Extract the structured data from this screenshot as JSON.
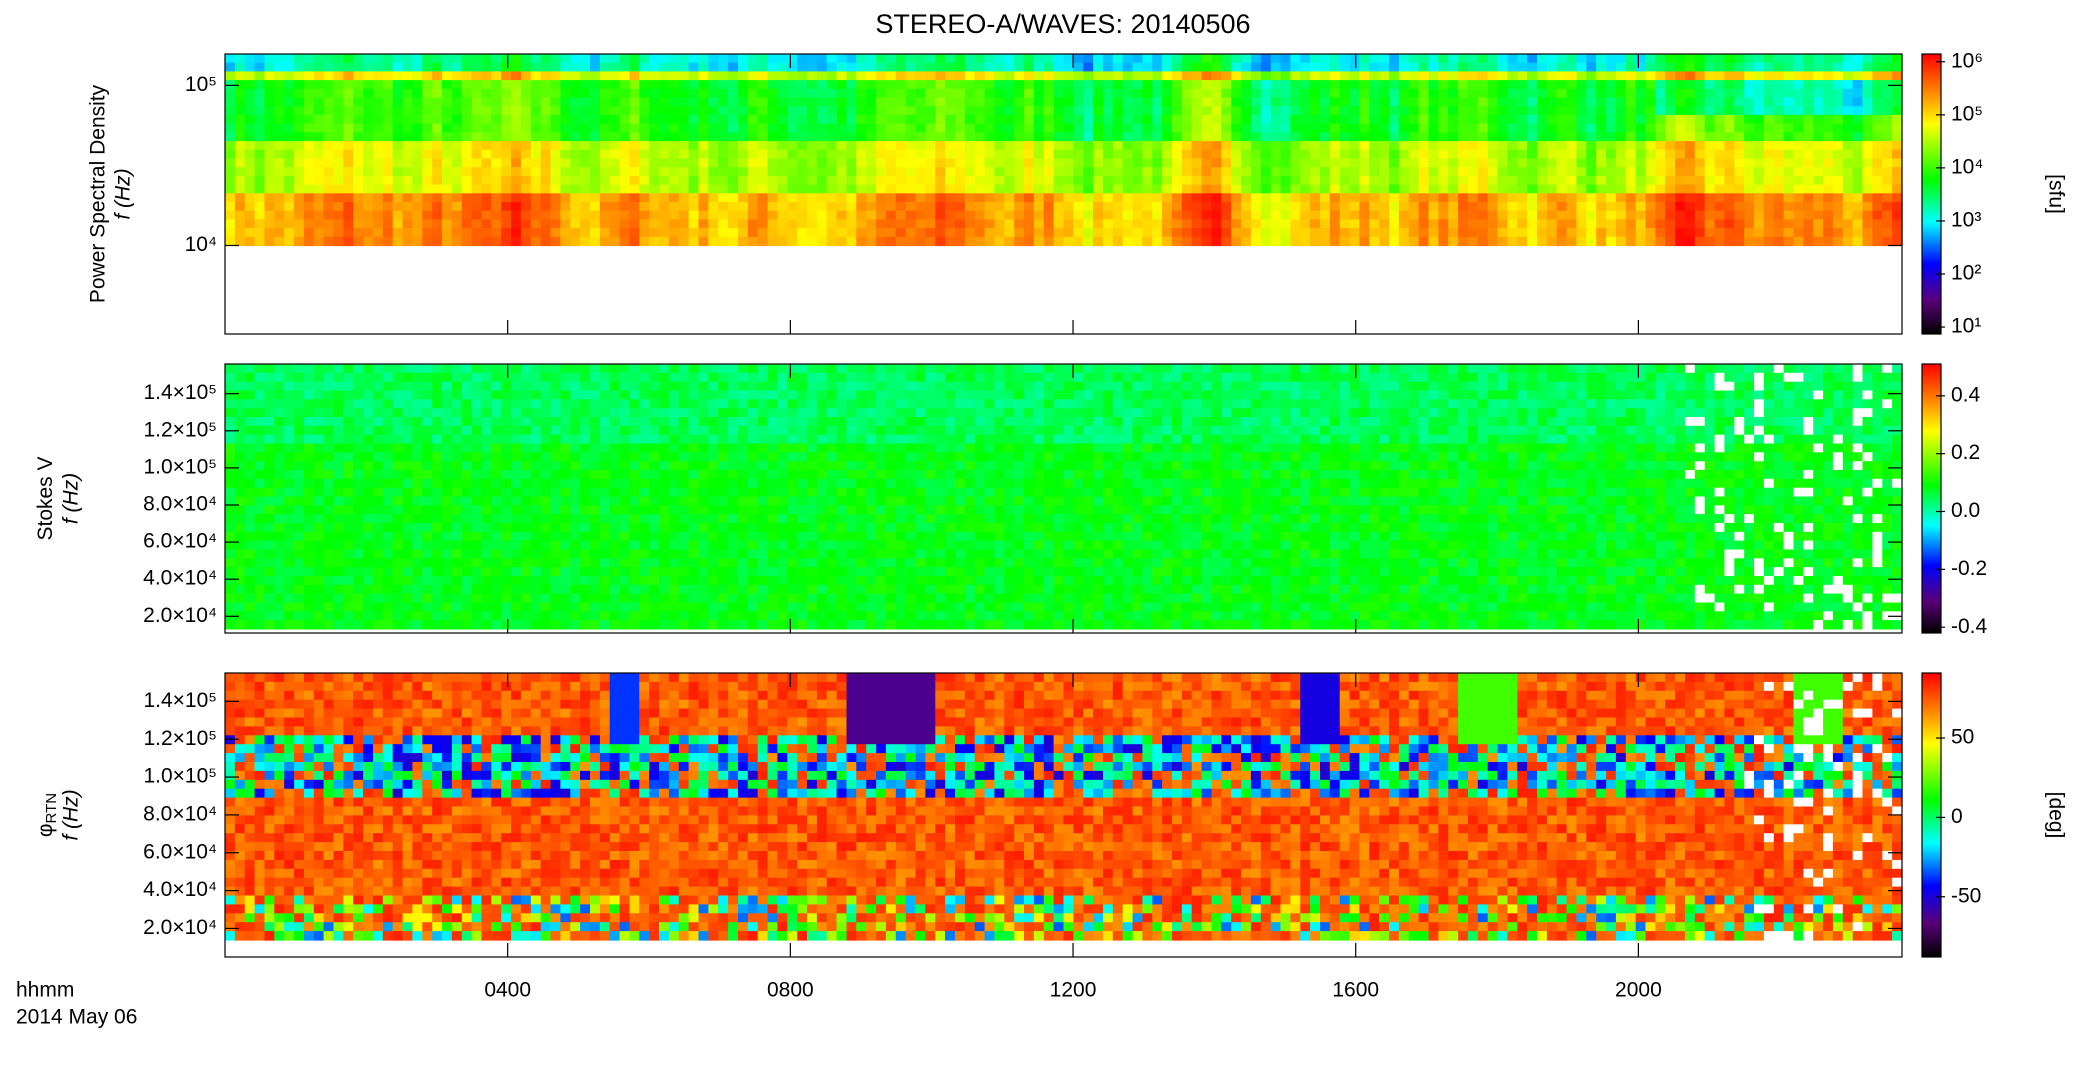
{
  "title": "STEREO-A/WAVES: 20140506",
  "x_label": "hhmm",
  "date_label": "2014 May 06",
  "xlim": [
    0,
    23.73
  ],
  "xticks": [
    {
      "value": 4,
      "label": "0400"
    },
    {
      "value": 8,
      "label": "0800"
    },
    {
      "value": 12,
      "label": "1200"
    },
    {
      "value": 16,
      "label": "1600"
    },
    {
      "value": 20,
      "label": "2000"
    }
  ],
  "chart_data": [
    {
      "type": "spectrogram",
      "ylabel": "Power Spectral Density",
      "ylabel2": "f (Hz)",
      "yscale": "log",
      "ylim": [
        2800,
        157000
      ],
      "yticks": [
        {
          "value": 10000,
          "label": "10⁴"
        },
        {
          "value": 100000,
          "label": "10⁵"
        }
      ],
      "colorbar": {
        "label": "[sfu]",
        "scale": "log",
        "lim": [
          7.4,
          1400000
        ],
        "ticks": [
          {
            "value": 10,
            "label": "10¹"
          },
          {
            "value": 100,
            "label": "10²"
          },
          {
            "value": 1000,
            "label": "10³"
          },
          {
            "value": 10000,
            "label": "10⁴"
          },
          {
            "value": 100000,
            "label": "10⁵"
          },
          {
            "value": 1000000,
            "label": "10⁶"
          }
        ]
      }
    },
    {
      "type": "spectrogram",
      "ylabel": "Stokes V",
      "ylabel2": "f (Hz)",
      "yscale": "linear",
      "ylim": [
        11000,
        156000
      ],
      "yticks": [
        {
          "value": 20000,
          "label": "2.0×10⁴"
        },
        {
          "value": 40000,
          "label": "4.0×10⁴"
        },
        {
          "value": 60000,
          "label": "6.0×10⁴"
        },
        {
          "value": 80000,
          "label": "8.0×10⁴"
        },
        {
          "value": 100000,
          "label": "1.0×10⁵"
        },
        {
          "value": 120000,
          "label": "1.2×10⁵"
        },
        {
          "value": 140000,
          "label": "1.4×10⁵"
        }
      ],
      "colorbar": {
        "scale": "linear",
        "lim": [
          -0.42,
          0.51
        ],
        "ticks": [
          {
            "value": -0.4,
            "label": "-0.4"
          },
          {
            "value": -0.2,
            "label": "-0.2"
          },
          {
            "value": 0,
            "label": "0.0"
          },
          {
            "value": 0.2,
            "label": "0.2"
          },
          {
            "value": 0.4,
            "label": "0.4"
          }
        ]
      }
    },
    {
      "type": "spectrogram",
      "ylabel": "φ",
      "ylabel_sub": "RTN",
      "ylabel2": "f (Hz)",
      "yscale": "linear",
      "ylim": [
        4900,
        155000
      ],
      "yticks": [
        {
          "value": 20000,
          "label": "2.0×10⁴"
        },
        {
          "value": 40000,
          "label": "4.0×10⁴"
        },
        {
          "value": 60000,
          "label": "6.0×10⁴"
        },
        {
          "value": 80000,
          "label": "8.0×10⁴"
        },
        {
          "value": 100000,
          "label": "1.0×10⁵"
        },
        {
          "value": 120000,
          "label": "1.2×10⁵"
        },
        {
          "value": 140000,
          "label": "1.4×10⁵"
        }
      ],
      "colorbar": {
        "label": "[deg]",
        "scale": "linear",
        "lim": [
          -88,
          91
        ],
        "ticks": [
          -50,
          0,
          50
        ]
      }
    }
  ]
}
